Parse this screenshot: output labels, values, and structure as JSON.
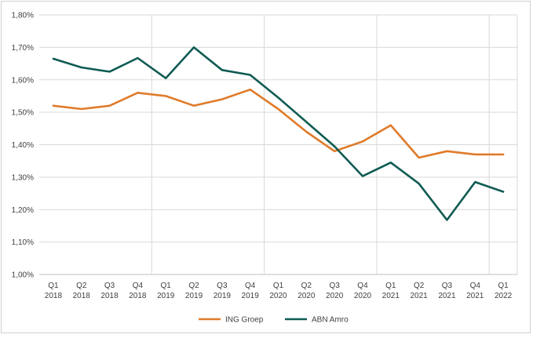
{
  "chart_data": {
    "type": "line",
    "title": "",
    "xlabel": "",
    "ylabel": "",
    "ylim": [
      1.0,
      1.8
    ],
    "y_ticks": [
      "1,00%",
      "1,10%",
      "1,20%",
      "1,30%",
      "1,40%",
      "1,50%",
      "1,60%",
      "1,70%",
      "1,80%"
    ],
    "categories": [
      {
        "q": "Q1",
        "y": "2018"
      },
      {
        "q": "Q2",
        "y": "2018"
      },
      {
        "q": "Q3",
        "y": "2018"
      },
      {
        "q": "Q4",
        "y": "2018"
      },
      {
        "q": "Q1",
        "y": "2019"
      },
      {
        "q": "Q2",
        "y": "2019"
      },
      {
        "q": "Q3",
        "y": "2019"
      },
      {
        "q": "Q4",
        "y": "2019"
      },
      {
        "q": "Q1",
        "y": "2020"
      },
      {
        "q": "Q2",
        "y": "2020"
      },
      {
        "q": "Q3",
        "y": "2020"
      },
      {
        "q": "Q4",
        "y": "2020"
      },
      {
        "q": "Q1",
        "y": "2021"
      },
      {
        "q": "Q2",
        "y": "2021"
      },
      {
        "q": "Q3",
        "y": "2021"
      },
      {
        "q": "Q4",
        "y": "2021"
      },
      {
        "q": "Q1",
        "y": "2022"
      }
    ],
    "series": [
      {
        "name": "ING Groep",
        "color": "#E07B2A",
        "values": [
          1.52,
          1.51,
          1.52,
          1.56,
          1.55,
          1.52,
          1.54,
          1.57,
          1.51,
          1.44,
          1.38,
          1.41,
          1.46,
          1.36,
          1.38,
          1.37,
          1.37
        ]
      },
      {
        "name": "ABN Amro",
        "color": "#0F5B53",
        "values": [
          1.665,
          1.638,
          1.625,
          1.667,
          1.605,
          1.7,
          1.63,
          1.615,
          1.545,
          1.47,
          1.395,
          1.303,
          1.345,
          1.28,
          1.168,
          1.285,
          1.255
        ]
      }
    ],
    "grid": {
      "horizontal": true,
      "vertical_year_lines": true
    },
    "legend_position": "bottom"
  }
}
